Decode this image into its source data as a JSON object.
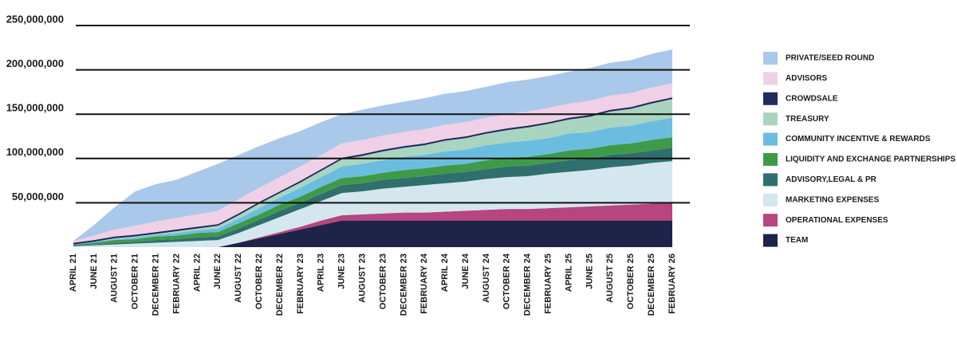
{
  "chart_data": {
    "type": "stacked-area",
    "categories": [
      "APRIL 21",
      "JUNE 21",
      "AUGUST 21",
      "OCTOBER 21",
      "DECEMBER 21",
      "FEBRUARY 22",
      "APRIL 22",
      "JUNE 22",
      "AUGUST 22",
      "OCTOBER 22",
      "DECEMBER 22",
      "FEBRUARY 23",
      "APRIL 23",
      "JUNE 23",
      "AUGUST 23",
      "OCTOBER 23",
      "DECEMBER 23",
      "FEBRUARY 24",
      "APRIL 24",
      "JUNE 24",
      "AUGUST 24",
      "OCTOBER 24",
      "DECEMBER 24",
      "FEBRUARY 25",
      "APRIL 25",
      "JUNE 25",
      "AUGUST 25",
      "OCTOBER 25",
      "DECEMBER 25",
      "FEBRUARY 26"
    ],
    "ylim": [
      0,
      250000000
    ],
    "yticks": [
      {
        "value": 50000000,
        "label": "50,000,000"
      },
      {
        "value": 100000000,
        "label": "100,000,000"
      },
      {
        "value": 150000000,
        "label": "150,000,000"
      },
      {
        "value": 200000000,
        "label": "200,000,000"
      },
      {
        "value": 250000000,
        "label": "250,000,000"
      }
    ],
    "grid": true,
    "legend": "right",
    "series": [
      {
        "name": "TEAM",
        "color": "#1d2447",
        "values": [
          0,
          0,
          0,
          0,
          0,
          0,
          0,
          0,
          5000000,
          10000000,
          15000000,
          20000000,
          25000000,
          30000000,
          30000000,
          30000000,
          30000000,
          30000000,
          30000000,
          30000000,
          30000000,
          30000000,
          30000000,
          30000000,
          30000000,
          30000000,
          30000000,
          30000000,
          30000000,
          30000000
        ]
      },
      {
        "name": "OPERATIONAL EXPENSES",
        "color": "#b8457f",
        "values": [
          0,
          0,
          0,
          0,
          0,
          0,
          0,
          0,
          0,
          1000000,
          2000000,
          3000000,
          5000000,
          6000000,
          7000000,
          8000000,
          9000000,
          9000000,
          10000000,
          11000000,
          12000000,
          13000000,
          13000000,
          14000000,
          15000000,
          16000000,
          17000000,
          18000000,
          19000000,
          20000000
        ]
      },
      {
        "name": "MARKETING EXPENSES",
        "color": "#d4e7ee",
        "values": [
          1000000,
          2000000,
          3000000,
          4000000,
          5000000,
          6000000,
          7000000,
          8000000,
          11000000,
          14000000,
          17000000,
          20000000,
          22000000,
          25000000,
          26000000,
          28000000,
          29000000,
          31000000,
          32000000,
          33000000,
          35000000,
          36000000,
          37000000,
          39000000,
          40000000,
          41000000,
          43000000,
          44000000,
          46000000,
          47000000
        ]
      },
      {
        "name": "ADVISORY,LEGAL & PR",
        "color": "#2f6f6e",
        "values": [
          1000000,
          1000000,
          2000000,
          2000000,
          3000000,
          3000000,
          4000000,
          4000000,
          5000000,
          6000000,
          7000000,
          7000000,
          8000000,
          9000000,
          9000000,
          10000000,
          10000000,
          10000000,
          11000000,
          11000000,
          11000000,
          12000000,
          12000000,
          12000000,
          13000000,
          13000000,
          14000000,
          14000000,
          14000000,
          15000000
        ]
      },
      {
        "name": "LIQUIDITY AND EXCHANGE PARTNERSHIPS",
        "color": "#3f9a48",
        "values": [
          1000000,
          2000000,
          3000000,
          3000000,
          4000000,
          4000000,
          5000000,
          5000000,
          6000000,
          6000000,
          7000000,
          7000000,
          8000000,
          8000000,
          8000000,
          8000000,
          9000000,
          9000000,
          9000000,
          9000000,
          10000000,
          10000000,
          10000000,
          10000000,
          11000000,
          11000000,
          11000000,
          11000000,
          12000000,
          12000000
        ]
      },
      {
        "name": "COMMUNITY INCENTIVE & REWARDS",
        "color": "#6bbde0",
        "values": [
          0,
          1000000,
          1000000,
          2000000,
          2000000,
          3000000,
          3000000,
          4000000,
          5000000,
          7000000,
          8000000,
          10000000,
          11000000,
          13000000,
          14000000,
          14000000,
          15000000,
          15000000,
          16000000,
          16000000,
          17000000,
          17000000,
          18000000,
          18000000,
          19000000,
          19000000,
          20000000,
          20000000,
          21000000,
          22000000
        ]
      },
      {
        "name": "TREASURY",
        "color": "#a9d4c0",
        "values": [
          0,
          0,
          1000000,
          1000000,
          1000000,
          2000000,
          2000000,
          3000000,
          4000000,
          5000000,
          5000000,
          6000000,
          7000000,
          8000000,
          9000000,
          10000000,
          10000000,
          11000000,
          12000000,
          13000000,
          13000000,
          14000000,
          15000000,
          16000000,
          16000000,
          17000000,
          18000000,
          19000000,
          20000000,
          21000000
        ]
      },
      {
        "name": "CROWDSALE",
        "color": "#1f2d5c",
        "values": [
          2000000,
          2000000,
          2000000,
          2000000,
          2000000,
          2000000,
          2000000,
          2000000,
          2000000,
          2000000,
          2000000,
          2000000,
          2000000,
          2000000,
          2000000,
          2000000,
          2000000,
          2000000,
          2000000,
          2000000,
          2000000,
          2000000,
          2000000,
          2000000,
          2000000,
          2000000,
          2000000,
          2000000,
          2000000,
          2000000
        ]
      },
      {
        "name": "ADVISORS",
        "color": "#f0d0e6",
        "values": [
          2000000,
          5000000,
          8000000,
          10000000,
          12000000,
          13000000,
          14000000,
          15000000,
          16000000,
          16000000,
          16000000,
          16000000,
          16000000,
          16000000,
          16000000,
          16000000,
          16000000,
          16000000,
          16000000,
          16000000,
          16000000,
          16000000,
          16000000,
          16000000,
          16000000,
          16000000,
          16000000,
          16000000,
          16000000,
          16000000
        ]
      },
      {
        "name": "PRIVATE/SEED ROUND",
        "color": "#a9c8ea",
        "values": [
          0,
          12000000,
          25000000,
          39000000,
          42000000,
          43000000,
          48000000,
          53000000,
          50000000,
          47000000,
          44000000,
          40000000,
          37000000,
          33000000,
          34000000,
          34000000,
          34000000,
          35000000,
          35000000,
          35000000,
          35000000,
          36000000,
          36000000,
          36000000,
          36000000,
          37000000,
          37000000,
          37000000,
          38000000,
          38000000
        ]
      }
    ]
  }
}
